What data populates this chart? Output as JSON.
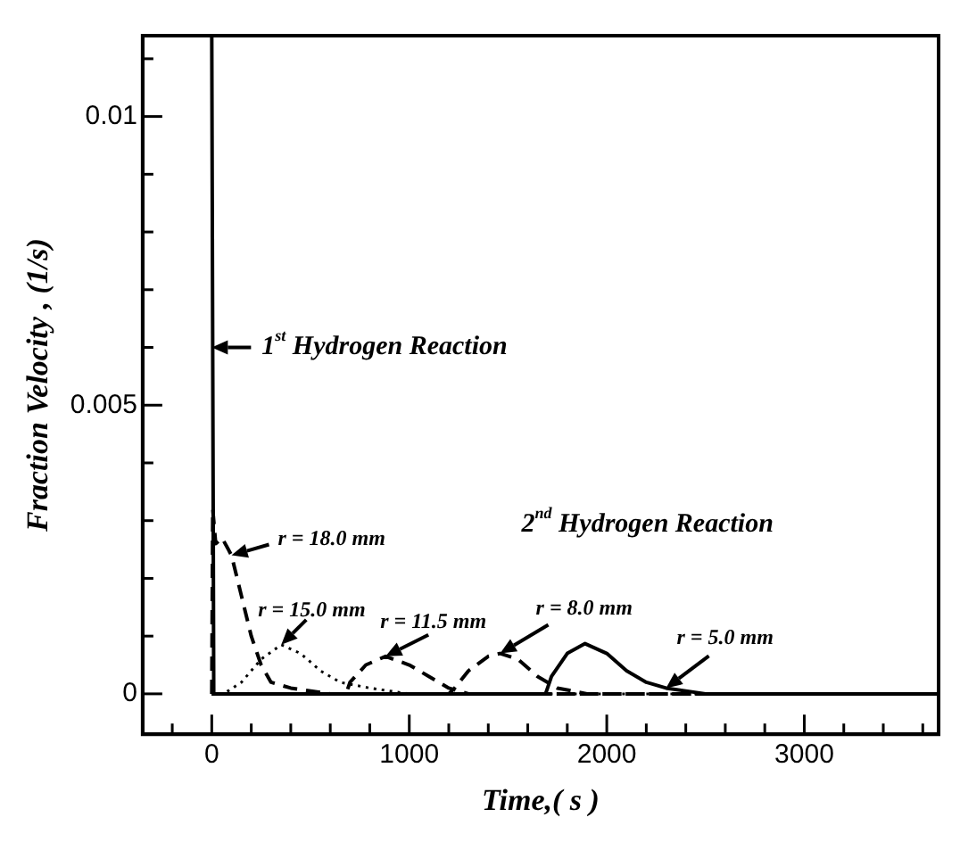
{
  "chart_data": {
    "type": "line",
    "xlabel": "Time,( s )",
    "ylabel": "Fraction Velocity , (1/s)",
    "xlim": [
      -350,
      3680
    ],
    "ylim": [
      -0.0007,
      0.0114
    ],
    "xticks": [
      {
        "value": -200,
        "label": null
      },
      0,
      {
        "value": 200,
        "label": null
      },
      {
        "value": 400,
        "label": null
      },
      {
        "value": 600,
        "label": null
      },
      {
        "value": 800,
        "label": null
      },
      1000,
      {
        "value": 1200,
        "label": null
      },
      {
        "value": 1400,
        "label": null
      },
      {
        "value": 1600,
        "label": null
      },
      {
        "value": 1800,
        "label": null
      },
      2000,
      {
        "value": 2200,
        "label": null
      },
      {
        "value": 2400,
        "label": null
      },
      {
        "value": 2600,
        "label": null
      },
      {
        "value": 2800,
        "label": null
      },
      3000,
      {
        "value": 3200,
        "label": null
      },
      {
        "value": 3400,
        "label": null
      },
      {
        "value": 3600,
        "label": null
      }
    ],
    "yticks": [
      0,
      {
        "value": 0.001,
        "label": null
      },
      {
        "value": 0.002,
        "label": null
      },
      {
        "value": 0.003,
        "label": null
      },
      {
        "value": 0.004,
        "label": null
      },
      0.005,
      {
        "value": 0.006,
        "label": null
      },
      {
        "value": 0.007,
        "label": null
      },
      {
        "value": 0.008,
        "label": null
      },
      {
        "value": 0.009,
        "label": null
      },
      0.01,
      {
        "value": 0.011,
        "label": null
      }
    ],
    "grid": false,
    "legend": false,
    "marker": "none",
    "annotations": [
      {
        "text": "1$^{st}$ Hydrogen Reaction",
        "x": 0,
        "y": 0.006
      },
      "2$^{nd}$ Hydrogen Reaction",
      {
        "text": "r = 18.0 mm",
        "x": 100,
        "y": 0.0024
      },
      {
        "text": "r = 15.0 mm",
        "x": 352,
        "y": 0.00085
      },
      {
        "text": "r = 11.5 mm",
        "x": 880,
        "y": 0.00065
      },
      {
        "text": "r = 8.0 mm",
        "x": 1460,
        "y": 0.0007
      },
      {
        "text": "r = 5.0 mm",
        "x": 2300,
        "y": 0.0001
      }
    ],
    "series": [
      {
        "color": "#000000",
        "line_style": "dashed",
        "x": [
          0,
          5,
          20,
          52,
          100,
          150,
          200,
          250,
          300,
          400,
          600,
          3680
        ],
        "values": [
          0,
          0.0032,
          0.0026,
          0.0027,
          0.0024,
          0.0017,
          0.001,
          0.0005,
          0.0002,
          0.0001,
          0,
          0
        ]
      },
      {
        "color": "#000000",
        "line_style": "dotted",
        "x": [
          0,
          60,
          150,
          250,
          352,
          450,
          550,
          650,
          800,
          1000,
          3680
        ],
        "values": [
          0,
          0,
          0.0002,
          0.0006,
          0.00085,
          0.0007,
          0.0004,
          0.0002,
          0.0001,
          0,
          0
        ]
      },
      {
        "color": "#000000",
        "line_style": "dashed",
        "x": [
          0,
          680,
          700,
          780,
          880,
          1000,
          1100,
          1200,
          1300,
          1500,
          3680
        ],
        "values": [
          0,
          0,
          0.0002,
          0.0005,
          0.00065,
          0.0005,
          0.0003,
          0.0001,
          0,
          0,
          0
        ]
      },
      {
        "color": "#000000",
        "line_style": "dashed",
        "x": [
          0,
          1200,
          1230,
          1300,
          1400,
          1460,
          1550,
          1650,
          1750,
          1900,
          2100,
          3680
        ],
        "values": [
          0,
          0,
          0.0001,
          0.0004,
          0.00065,
          0.0007,
          0.0006,
          0.0003,
          0.0001,
          0,
          0,
          0
        ]
      },
      {
        "color": "#000000",
        "line_style": "solid",
        "x": [
          0,
          10,
          1690,
          1720,
          1800,
          1890,
          2000,
          2100,
          2200,
          2300,
          2500,
          2800,
          3680
        ],
        "values": [
          0.0114,
          0,
          0,
          0.0003,
          0.0007,
          0.00087,
          0.0007,
          0.0004,
          0.0002,
          0.0001,
          0,
          0,
          0
        ]
      }
    ]
  }
}
